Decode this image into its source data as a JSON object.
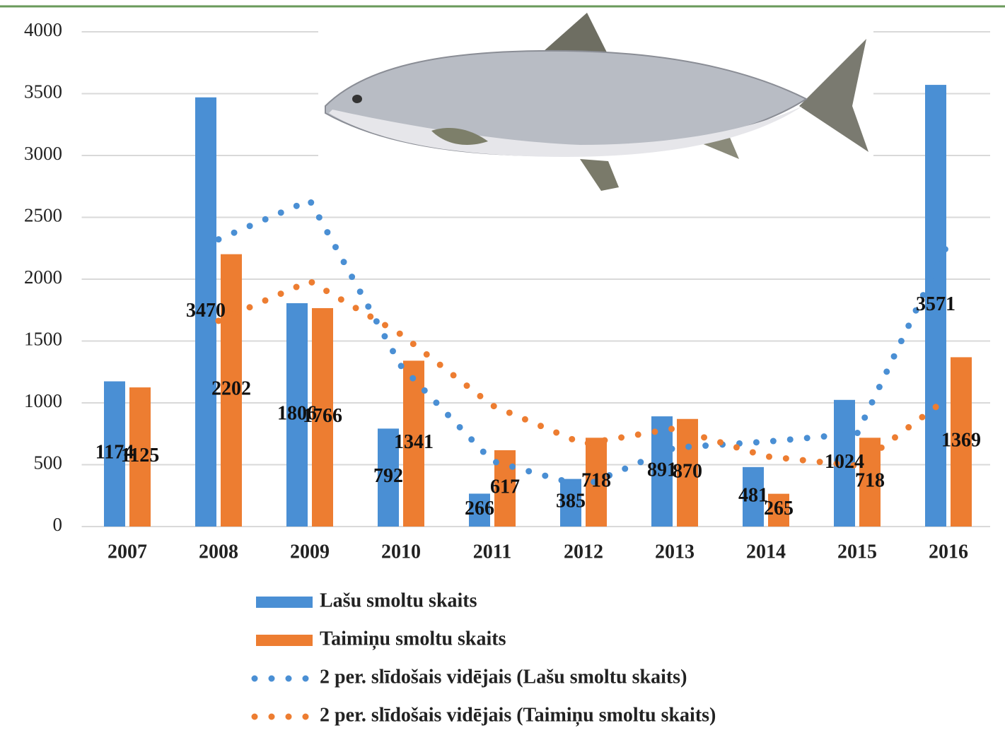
{
  "chart_data": {
    "type": "bar",
    "categories": [
      "2007",
      "2008",
      "2009",
      "2010",
      "2011",
      "2012",
      "2013",
      "2014",
      "2015",
      "2016"
    ],
    "series": [
      {
        "name": "Lašu smoltu skaits",
        "type": "bar",
        "color": "#4a8fd4",
        "values": [
          1174,
          3470,
          1806,
          792,
          266,
          385,
          891,
          481,
          1024,
          3571
        ]
      },
      {
        "name": "Taimiņu smoltu skaits",
        "type": "bar",
        "color": "#ed7d31",
        "values": [
          1125,
          2202,
          1766,
          1341,
          617,
          718,
          870,
          265,
          718,
          1369
        ]
      },
      {
        "name": "2 per. slīdošais vidējais (Lašu smoltu skaits)",
        "type": "line",
        "style": "dotted",
        "color": "#4a8fd4",
        "values": [
          null,
          2322,
          2638,
          1299,
          529,
          325.5,
          638,
          686,
          752.5,
          2297.5
        ]
      },
      {
        "name": "2 per. slīdošais vidējais (Taimiņu smoltu skaits)",
        "type": "line",
        "style": "dotted",
        "color": "#ed7d31",
        "values": [
          null,
          1663.5,
          1984,
          1553.5,
          979,
          667.5,
          794,
          567.5,
          491.5,
          1043.5
        ]
      }
    ],
    "ylim": [
      0,
      4000
    ],
    "yticks": [
      0,
      500,
      1000,
      1500,
      2000,
      2500,
      3000,
      3500,
      4000
    ],
    "grid": true,
    "legend": "bottom"
  }
}
